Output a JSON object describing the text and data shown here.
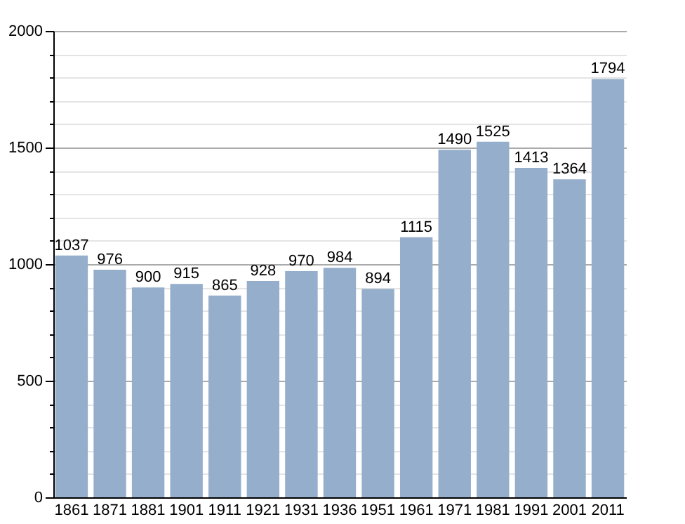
{
  "chart_data": {
    "type": "bar",
    "categories": [
      "1861",
      "1871",
      "1881",
      "1901",
      "1911",
      "1921",
      "1931",
      "1936",
      "1951",
      "1961",
      "1971",
      "1981",
      "1991",
      "2001",
      "2011"
    ],
    "values": [
      1037,
      976,
      900,
      915,
      865,
      928,
      970,
      984,
      894,
      1115,
      1490,
      1525,
      1413,
      1364,
      1794
    ],
    "color": "#94aecb",
    "data_labels": true,
    "grid": true,
    "ylim": [
      0,
      2000
    ],
    "yticks": [
      0,
      {
        "value": 100,
        "label": null
      },
      {
        "value": 200,
        "label": null
      },
      {
        "value": 300,
        "label": null
      },
      {
        "value": 400,
        "label": null
      },
      500,
      {
        "value": 600,
        "label": null
      },
      {
        "value": 700,
        "label": null
      },
      {
        "value": 800,
        "label": null
      },
      {
        "value": 900,
        "label": null
      },
      1000,
      {
        "value": 1100,
        "label": null
      },
      {
        "value": 1200,
        "label": null
      },
      {
        "value": 1300,
        "label": null
      },
      {
        "value": 1400,
        "label": null
      },
      1500,
      {
        "value": 1600,
        "label": null
      },
      {
        "value": 1700,
        "label": null
      },
      {
        "value": 1800,
        "label": null
      },
      {
        "value": 1900,
        "label": null
      },
      2000
    ]
  }
}
